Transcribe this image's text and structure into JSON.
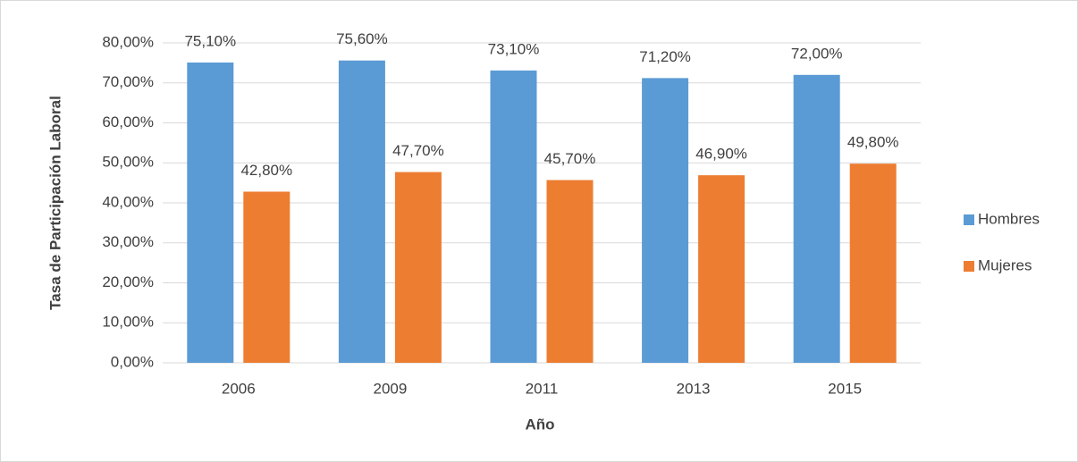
{
  "chart_data": {
    "type": "bar",
    "categories": [
      "2006",
      "2009",
      "2011",
      "2013",
      "2015"
    ],
    "series": [
      {
        "name": "Hombres",
        "color": "#5b9bd5",
        "values": [
          75.1,
          75.6,
          73.1,
          71.2,
          72.0
        ],
        "value_labels": [
          "75,10%",
          "75,60%",
          "73,10%",
          "71,20%",
          "72,00%"
        ]
      },
      {
        "name": "Mujeres",
        "color": "#ed7d31",
        "values": [
          42.8,
          47.7,
          45.7,
          46.9,
          49.8
        ],
        "value_labels": [
          "42,80%",
          "47,70%",
          "45,70%",
          "46,90%",
          "49,80%"
        ]
      }
    ],
    "xlabel": "Año",
    "ylabel": "Tasa de Participación Laboral",
    "ylim": [
      0,
      80
    ],
    "yticks": [
      {
        "value": 0,
        "label": "0,00%"
      },
      {
        "value": 10,
        "label": "10,00%"
      },
      {
        "value": 20,
        "label": "20,00%"
      },
      {
        "value": 30,
        "label": "30,00%"
      },
      {
        "value": 40,
        "label": "40,00%"
      },
      {
        "value": 50,
        "label": "50,00%"
      },
      {
        "value": 60,
        "label": "60,00%"
      },
      {
        "value": 70,
        "label": "70,00%"
      },
      {
        "value": 80,
        "label": "80,00%"
      }
    ],
    "grid": true,
    "legend": "right"
  }
}
